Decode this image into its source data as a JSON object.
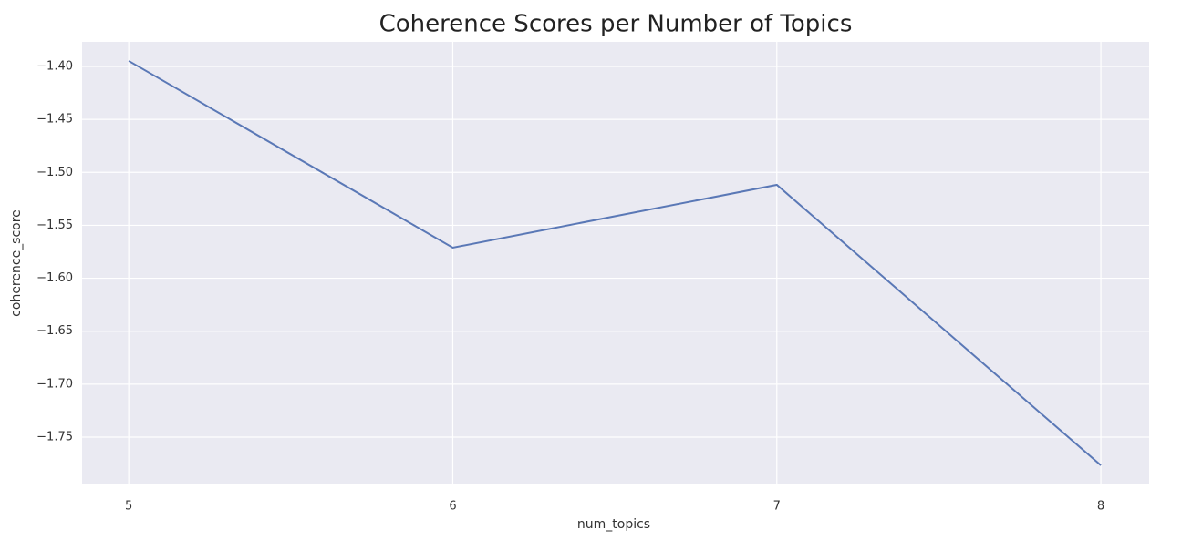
{
  "chart_data": {
    "type": "line",
    "title": "Coherence Scores per Number of Topics",
    "x_label": "num_topics",
    "y_label": "coherence_score",
    "x": [
      5,
      6,
      7,
      8
    ],
    "values": [
      -1.3948,
      -1.5711,
      -1.5118,
      -1.7766
    ],
    "color": "#5a78b6",
    "xlim": [
      4.856,
      8.149
    ],
    "xticks": [
      5,
      6,
      7,
      8
    ],
    "ylim": [
      -1.7947,
      -1.3768
    ],
    "yticks": [
      {
        "value": -1.4,
        "label": "−1.40"
      },
      {
        "value": -1.45,
        "label": "−1.45"
      },
      {
        "value": -1.5,
        "label": "−1.50"
      },
      {
        "value": -1.55,
        "label": "−1.55"
      },
      {
        "value": -1.6,
        "label": "−1.60"
      },
      {
        "value": -1.65,
        "label": "−1.65"
      },
      {
        "value": -1.7,
        "label": "−1.70"
      },
      {
        "value": -1.75,
        "label": "−1.75"
      }
    ],
    "grid": true,
    "background": "#eaeaf2"
  }
}
